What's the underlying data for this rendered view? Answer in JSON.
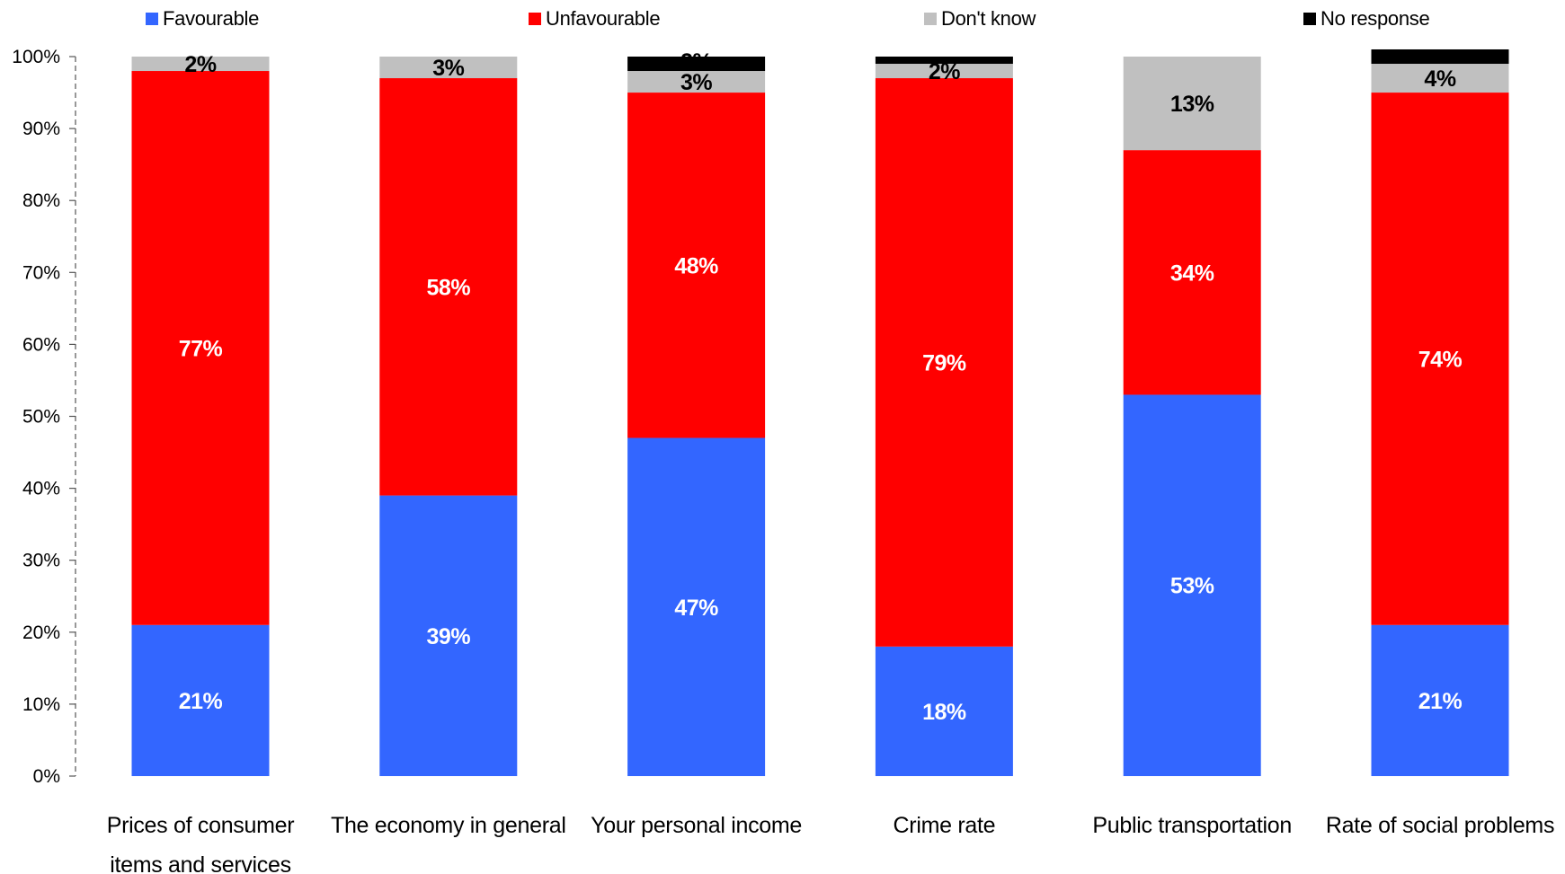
{
  "legend": [
    {
      "label": "Favourable",
      "color": "#3366FF"
    },
    {
      "label": "Unfavourable",
      "color": "#FF0000"
    },
    {
      "label": "Don't know",
      "color": "#C0C0C0"
    },
    {
      "label": "No response",
      "color": "#000000"
    }
  ],
  "chart_data": {
    "type": "bar",
    "stacked": true,
    "categories": [
      [
        "Prices of consumer",
        "items and services"
      ],
      [
        "The economy in general"
      ],
      [
        "Your personal income"
      ],
      [
        "Crime rate"
      ],
      [
        "Public transportation"
      ],
      [
        "Rate of social problems"
      ]
    ],
    "series": [
      {
        "name": "Favourable",
        "color": "#3366FF",
        "label_color": "#FFFFFF",
        "values": [
          21,
          39,
          47,
          18,
          53,
          21
        ]
      },
      {
        "name": "Unfavourable",
        "color": "#FF0000",
        "label_color": "#FFFFFF",
        "values": [
          77,
          58,
          48,
          79,
          34,
          74
        ]
      },
      {
        "name": "Don't know",
        "color": "#C0C0C0",
        "label_color": "#000000",
        "values": [
          2,
          3,
          3,
          2,
          13,
          4
        ]
      },
      {
        "name": "No response",
        "color": "#000000",
        "label_color": "#000000",
        "values": [
          0,
          0,
          2,
          1,
          0,
          2
        ]
      }
    ],
    "labels": [
      [
        "21%",
        "77%",
        "2%",
        ""
      ],
      [
        "39%",
        "58%",
        "3%",
        ""
      ],
      [
        "47%",
        "48%",
        "3%",
        "2%"
      ],
      [
        "18%",
        "79%",
        "2%",
        ""
      ],
      [
        "53%",
        "34%",
        "13%",
        ""
      ],
      [
        "21%",
        "74%",
        "4%",
        ""
      ]
    ],
    "yticks": [
      "0%",
      "10%",
      "20%",
      "30%",
      "40%",
      "50%",
      "60%",
      "70%",
      "80%",
      "90%",
      "100%"
    ],
    "ylim": [
      0,
      100
    ],
    "grid": false,
    "legend_position": "top"
  }
}
